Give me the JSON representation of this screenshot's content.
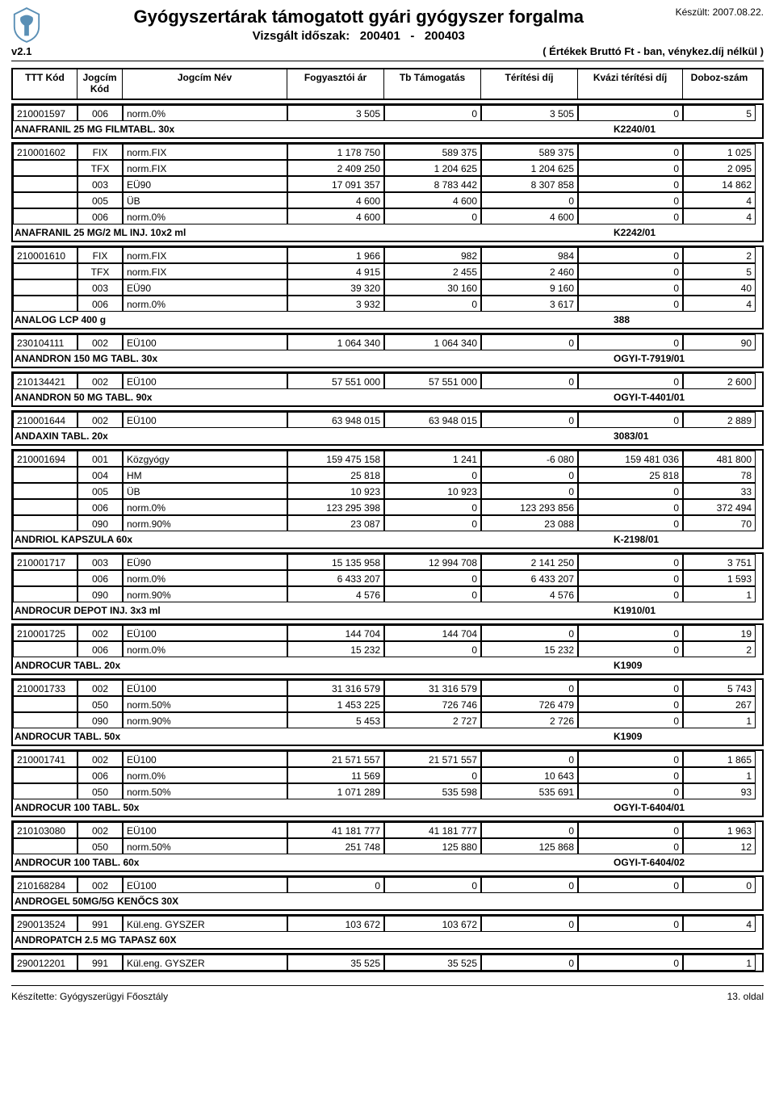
{
  "header": {
    "made_label": "Készült:",
    "made_date": "2007.08.22.",
    "main_title": "Gyógyszertárak támogatott gyári gyógyszer forgalma",
    "sub_title": "Vizsgált időszak:",
    "period_from": "200401",
    "period_sep": "-",
    "period_to": "200403",
    "version": "v2.1",
    "note": "( Értékek Bruttó Ft - ban, vénykez.díj nélkül )"
  },
  "columns": {
    "ttt": "TTT Kód",
    "jkod": "Jogcím Kód",
    "jnev": "Jogcím Név",
    "fogy": "Fogyasztói ár",
    "tb": "Tb Támogatás",
    "ter": "Térítési díj",
    "kvazi": "Kvázi térítési díj",
    "dob": "Doboz-szám"
  },
  "groups": [
    {
      "rows": [
        {
          "ttt": "210001597",
          "jkod": "006",
          "jnev": "norm.0%",
          "fogy": "3 505",
          "tb": "0",
          "ter": "3 505",
          "kvazi": "0",
          "dob": "5"
        }
      ],
      "product": {
        "name": "ANAFRANIL 25 MG FILMTABL.   30x",
        "code": "K2240/01"
      }
    },
    {
      "rows": [
        {
          "ttt": "210001602",
          "jkod": "FIX",
          "jnev": "norm.FIX",
          "fogy": "1 178 750",
          "tb": "589 375",
          "ter": "589 375",
          "kvazi": "0",
          "dob": "1 025"
        },
        {
          "ttt": "",
          "jkod": "TFX",
          "jnev": "norm.FIX",
          "fogy": "2 409 250",
          "tb": "1 204 625",
          "ter": "1 204 625",
          "kvazi": "0",
          "dob": "2 095"
        },
        {
          "ttt": "",
          "jkod": "003",
          "jnev": "EÜ90",
          "fogy": "17 091 357",
          "tb": "8 783 442",
          "ter": "8 307 858",
          "kvazi": "0",
          "dob": "14 862"
        },
        {
          "ttt": "",
          "jkod": "005",
          "jnev": "ÜB",
          "fogy": "4 600",
          "tb": "4 600",
          "ter": "0",
          "kvazi": "0",
          "dob": "4"
        },
        {
          "ttt": "",
          "jkod": "006",
          "jnev": "norm.0%",
          "fogy": "4 600",
          "tb": "0",
          "ter": "4 600",
          "kvazi": "0",
          "dob": "4"
        }
      ],
      "product": {
        "name": "ANAFRANIL 25 MG/2 ML INJ.   10x2 ml",
        "code": "K2242/01"
      }
    },
    {
      "rows": [
        {
          "ttt": "210001610",
          "jkod": "FIX",
          "jnev": "norm.FIX",
          "fogy": "1 966",
          "tb": "982",
          "ter": "984",
          "kvazi": "0",
          "dob": "2"
        },
        {
          "ttt": "",
          "jkod": "TFX",
          "jnev": "norm.FIX",
          "fogy": "4 915",
          "tb": "2 455",
          "ter": "2 460",
          "kvazi": "0",
          "dob": "5"
        },
        {
          "ttt": "",
          "jkod": "003",
          "jnev": "EÜ90",
          "fogy": "39 320",
          "tb": "30 160",
          "ter": "9 160",
          "kvazi": "0",
          "dob": "40"
        },
        {
          "ttt": "",
          "jkod": "006",
          "jnev": "norm.0%",
          "fogy": "3 932",
          "tb": "0",
          "ter": "3 617",
          "kvazi": "0",
          "dob": "4"
        }
      ],
      "product": {
        "name": "ANALOG LCP   400 g",
        "code": "388"
      }
    },
    {
      "rows": [
        {
          "ttt": "230104111",
          "jkod": "002",
          "jnev": "EÜ100",
          "fogy": "1 064 340",
          "tb": "1 064 340",
          "ter": "0",
          "kvazi": "0",
          "dob": "90"
        }
      ],
      "product": {
        "name": "ANANDRON 150 MG TABL.   30x",
        "code": "OGYI-T-7919/01"
      }
    },
    {
      "rows": [
        {
          "ttt": "210134421",
          "jkod": "002",
          "jnev": "EÜ100",
          "fogy": "57 551 000",
          "tb": "57 551 000",
          "ter": "0",
          "kvazi": "0",
          "dob": "2 600"
        }
      ],
      "product": {
        "name": "ANANDRON 50 MG TABL.   90x",
        "code": "OGYI-T-4401/01"
      }
    },
    {
      "rows": [
        {
          "ttt": "210001644",
          "jkod": "002",
          "jnev": "EÜ100",
          "fogy": "63 948 015",
          "tb": "63 948 015",
          "ter": "0",
          "kvazi": "0",
          "dob": "2 889"
        }
      ],
      "product": {
        "name": "ANDAXIN TABL.   20x",
        "code": "3083/01"
      }
    },
    {
      "rows": [
        {
          "ttt": "210001694",
          "jkod": "001",
          "jnev": "Közgyógy",
          "fogy": "159 475 158",
          "tb": "1 241",
          "ter": "-6 080",
          "kvazi": "159 481 036",
          "dob": "481 800"
        },
        {
          "ttt": "",
          "jkod": "004",
          "jnev": "HM",
          "fogy": "25 818",
          "tb": "0",
          "ter": "0",
          "kvazi": "25 818",
          "dob": "78"
        },
        {
          "ttt": "",
          "jkod": "005",
          "jnev": "ÜB",
          "fogy": "10 923",
          "tb": "10 923",
          "ter": "0",
          "kvazi": "0",
          "dob": "33"
        },
        {
          "ttt": "",
          "jkod": "006",
          "jnev": "norm.0%",
          "fogy": "123 295 398",
          "tb": "0",
          "ter": "123 293 856",
          "kvazi": "0",
          "dob": "372 494"
        },
        {
          "ttt": "",
          "jkod": "090",
          "jnev": "norm.90%",
          "fogy": "23 087",
          "tb": "0",
          "ter": "23 088",
          "kvazi": "0",
          "dob": "70"
        }
      ],
      "product": {
        "name": "ANDRIOL KAPSZULA   60x",
        "code": "K-2198/01"
      }
    },
    {
      "rows": [
        {
          "ttt": "210001717",
          "jkod": "003",
          "jnev": "EÜ90",
          "fogy": "15 135 958",
          "tb": "12 994 708",
          "ter": "2 141 250",
          "kvazi": "0",
          "dob": "3 751"
        },
        {
          "ttt": "",
          "jkod": "006",
          "jnev": "norm.0%",
          "fogy": "6 433 207",
          "tb": "0",
          "ter": "6 433 207",
          "kvazi": "0",
          "dob": "1 593"
        },
        {
          "ttt": "",
          "jkod": "090",
          "jnev": "norm.90%",
          "fogy": "4 576",
          "tb": "0",
          "ter": "4 576",
          "kvazi": "0",
          "dob": "1"
        }
      ],
      "product": {
        "name": "ANDROCUR DEPOT INJ.   3x3 ml",
        "code": "K1910/01"
      }
    },
    {
      "rows": [
        {
          "ttt": "210001725",
          "jkod": "002",
          "jnev": "EÜ100",
          "fogy": "144 704",
          "tb": "144 704",
          "ter": "0",
          "kvazi": "0",
          "dob": "19"
        },
        {
          "ttt": "",
          "jkod": "006",
          "jnev": "norm.0%",
          "fogy": "15 232",
          "tb": "0",
          "ter": "15 232",
          "kvazi": "0",
          "dob": "2"
        }
      ],
      "product": {
        "name": "ANDROCUR TABL.   20x",
        "code": "K1909"
      }
    },
    {
      "rows": [
        {
          "ttt": "210001733",
          "jkod": "002",
          "jnev": "EÜ100",
          "fogy": "31 316 579",
          "tb": "31 316 579",
          "ter": "0",
          "kvazi": "0",
          "dob": "5 743"
        },
        {
          "ttt": "",
          "jkod": "050",
          "jnev": "norm.50%",
          "fogy": "1 453 225",
          "tb": "726 746",
          "ter": "726 479",
          "kvazi": "0",
          "dob": "267"
        },
        {
          "ttt": "",
          "jkod": "090",
          "jnev": "norm.90%",
          "fogy": "5 453",
          "tb": "2 727",
          "ter": "2 726",
          "kvazi": "0",
          "dob": "1"
        }
      ],
      "product": {
        "name": "ANDROCUR TABL.   50x",
        "code": "K1909"
      }
    },
    {
      "rows": [
        {
          "ttt": "210001741",
          "jkod": "002",
          "jnev": "EÜ100",
          "fogy": "21 571 557",
          "tb": "21 571 557",
          "ter": "0",
          "kvazi": "0",
          "dob": "1 865"
        },
        {
          "ttt": "",
          "jkod": "006",
          "jnev": "norm.0%",
          "fogy": "11 569",
          "tb": "0",
          "ter": "10 643",
          "kvazi": "0",
          "dob": "1"
        },
        {
          "ttt": "",
          "jkod": "050",
          "jnev": "norm.50%",
          "fogy": "1 071 289",
          "tb": "535 598",
          "ter": "535 691",
          "kvazi": "0",
          "dob": "93"
        }
      ],
      "product": {
        "name": "ANDROCUR 100 TABL.   50x",
        "code": "OGYI-T-6404/01"
      }
    },
    {
      "rows": [
        {
          "ttt": "210103080",
          "jkod": "002",
          "jnev": "EÜ100",
          "fogy": "41 181 777",
          "tb": "41 181 777",
          "ter": "0",
          "kvazi": "0",
          "dob": "1 963"
        },
        {
          "ttt": "",
          "jkod": "050",
          "jnev": "norm.50%",
          "fogy": "251 748",
          "tb": "125 880",
          "ter": "125 868",
          "kvazi": "0",
          "dob": "12"
        }
      ],
      "product": {
        "name": "ANDROCUR 100 TABL.   60x",
        "code": "OGYI-T-6404/02"
      }
    },
    {
      "rows": [
        {
          "ttt": "210168284",
          "jkod": "002",
          "jnev": "EÜ100",
          "fogy": "0",
          "tb": "0",
          "ter": "0",
          "kvazi": "0",
          "dob": "0"
        }
      ],
      "product": {
        "name": "ANDROGEL 50MG/5G KENŐCS   30X",
        "code": ""
      }
    },
    {
      "rows": [
        {
          "ttt": "290013524",
          "jkod": "991",
          "jnev": "Kül.eng. GYSZER",
          "fogy": "103 672",
          "tb": "103 672",
          "ter": "0",
          "kvazi": "0",
          "dob": "4"
        }
      ],
      "product": {
        "name": "ANDROPATCH 2.5 MG TAPASZ   60X",
        "code": ""
      }
    },
    {
      "rows": [
        {
          "ttt": "290012201",
          "jkod": "991",
          "jnev": "Kül.eng. GYSZER",
          "fogy": "35 525",
          "tb": "35 525",
          "ter": "0",
          "kvazi": "0",
          "dob": "1"
        }
      ]
    }
  ],
  "footer": {
    "left": "Készítette: Gyógyszerügyi Főosztály",
    "right": "13. oldal"
  }
}
